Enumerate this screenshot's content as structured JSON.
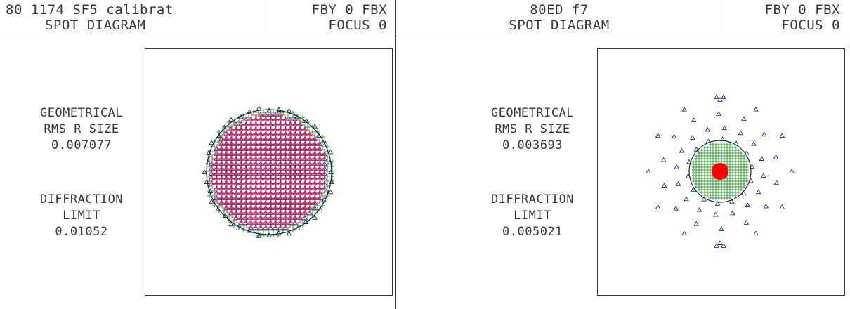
{
  "panels": [
    {
      "title": "80 1174 SF5 calibrat",
      "subtitle": "SPOT DIAGRAM",
      "field": "FBY 0 FBX",
      "focus": "FOCUS 0",
      "rms_label_1": "GEOMETRICAL",
      "rms_label_2": "RMS R SIZE",
      "rms_value": "0.007077",
      "diff_label_1": "DIFFRACTION",
      "diff_label_2": "LIMIT",
      "diff_value": "0.01052"
    },
    {
      "title": "80ED f7",
      "subtitle": "SPOT DIAGRAM",
      "field": "FBY 0 FBX",
      "focus": "FOCUS 0",
      "rms_label_1": "GEOMETRICAL",
      "rms_label_2": "RMS R SIZE",
      "rms_value": "0.003693",
      "diff_label_1": "DIFFRACTION",
      "diff_label_2": "LIMIT",
      "diff_value": "0.005021"
    }
  ],
  "colors": {
    "frame": "#3a3a3a",
    "blue_marker": "#1f2f9a",
    "red_marker": "#d42020",
    "green_marker": "#2e9a2e",
    "purple_marker": "#7a2a9a",
    "airy_disk": "#2a2a2a",
    "core_fill": "#ff0000"
  },
  "markers": {
    "triangle": "triangle-icon",
    "square": "square-icon",
    "plus": "plus-icon"
  }
}
